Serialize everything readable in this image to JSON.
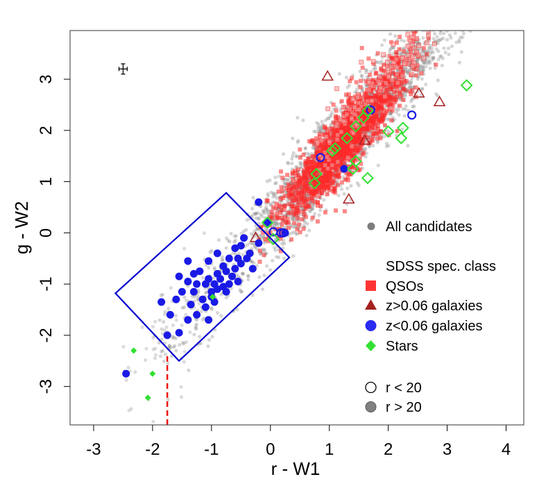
{
  "chart_data": {
    "type": "scatter",
    "title": "",
    "xlabel": "r - W1",
    "ylabel": "g - W2",
    "xlim": [
      -3.4,
      4.3
    ],
    "ylim": [
      -3.75,
      3.95
    ],
    "xticks": [
      "-3",
      "-2",
      "-1",
      "0",
      "1",
      "2",
      "3",
      "4"
    ],
    "yticks": [
      "-3",
      "-2",
      "-1",
      "0",
      "1",
      "2",
      "3"
    ],
    "colors": {
      "all": "#8a8a8a",
      "qso": "#ff2a2a",
      "gal_high": "#a52020",
      "gal_low": "#1a1ae6",
      "star": "#30e030",
      "box": "#0000d0",
      "dashed": "#ee1111"
    },
    "legend": {
      "position": "right",
      "all_candidates": "All candidates",
      "sdss_header": "SDSS spec. class",
      "qsos": "QSOs",
      "gal_high": "z>0.06 galaxies",
      "gal_low": "z<0.06 galaxies",
      "stars": "Stars",
      "bright": "r < 20",
      "faint": "r > 20"
    },
    "error_bar": {
      "x": -2.5,
      "y": 3.2,
      "dx": 0.07,
      "dy": 0.1
    },
    "selection_box": [
      [
        -0.75,
        0.78
      ],
      [
        0.32,
        -0.48
      ],
      [
        -1.55,
        -2.5
      ],
      [
        -2.63,
        -1.18
      ]
    ],
    "cut_line": {
      "x": -1.75,
      "y": [
        -3.75,
        -2.38
      ]
    },
    "all_candidates": {
      "description": "dense cloud along g-W2 = 1.3*(r-W1) + 0.15",
      "trend_slope": 1.3,
      "trend_intercept": 0.15,
      "x_range": [
        -1.9,
        4.0
      ]
    },
    "qsos": {
      "description": "dense red band centered near (1.2, 1.5)",
      "center": [
        1.2,
        1.5
      ],
      "x_range": [
        0.0,
        3.0
      ]
    },
    "series": [
      {
        "name": "z>0.06 galaxies",
        "marker": "triangle",
        "points": [
          [
            0.97,
            3.05
          ],
          [
            2.52,
            2.72
          ],
          [
            2.87,
            2.55
          ],
          [
            1.33,
            0.65
          ],
          [
            -0.25,
            -0.1
          ],
          [
            1.6,
            1.8
          ]
        ]
      },
      {
        "name": "z<0.06 galaxies, r < 20",
        "marker": "circle-open",
        "points": [
          [
            0.85,
            1.47
          ],
          [
            1.7,
            2.4
          ],
          [
            2.4,
            2.3
          ],
          [
            0.18,
            0.0
          ],
          [
            0.05,
            0.02
          ],
          [
            0.22,
            0.0
          ]
        ]
      },
      {
        "name": "z<0.06 galaxies, r > 20",
        "marker": "circle",
        "points": [
          [
            -0.2,
            0.6
          ],
          [
            -0.05,
            0.2
          ],
          [
            0.25,
            0.0
          ],
          [
            1.25,
            1.25
          ],
          [
            -0.45,
            -0.1
          ],
          [
            -0.2,
            -0.2
          ],
          [
            -0.5,
            -0.25
          ],
          [
            -0.35,
            -0.4
          ],
          [
            -0.55,
            -0.5
          ],
          [
            -0.7,
            -0.5
          ],
          [
            -0.4,
            -0.5
          ],
          [
            -0.5,
            -0.6
          ],
          [
            -0.6,
            -0.7
          ],
          [
            -0.8,
            -0.65
          ],
          [
            -0.75,
            -0.75
          ],
          [
            -0.65,
            -0.85
          ],
          [
            -0.9,
            -0.8
          ],
          [
            -0.85,
            -0.9
          ],
          [
            -0.55,
            -0.95
          ],
          [
            -0.95,
            -1.0
          ],
          [
            -0.7,
            -1.0
          ],
          [
            -1.05,
            -0.9
          ],
          [
            -0.8,
            -1.05
          ],
          [
            -0.9,
            -1.1
          ],
          [
            -1.1,
            -1.0
          ],
          [
            -0.75,
            -1.15
          ],
          [
            -1.0,
            -1.15
          ],
          [
            -1.25,
            -1.0
          ],
          [
            -1.4,
            -0.95
          ],
          [
            -1.0,
            -1.25
          ],
          [
            -1.15,
            -1.3
          ],
          [
            -1.3,
            -1.15
          ],
          [
            -0.95,
            -1.35
          ],
          [
            -1.5,
            -1.15
          ],
          [
            -1.1,
            -1.45
          ],
          [
            -1.35,
            -1.4
          ],
          [
            -1.6,
            -1.3
          ],
          [
            -1.25,
            -1.6
          ],
          [
            -1.05,
            -1.7
          ],
          [
            -1.4,
            -1.7
          ],
          [
            -1.7,
            -1.6
          ],
          [
            -1.55,
            -1.95
          ],
          [
            -1.75,
            -2.0
          ],
          [
            -1.85,
            -1.35
          ],
          [
            -1.55,
            -0.85
          ],
          [
            -1.2,
            -0.75
          ],
          [
            -1.05,
            -0.55
          ],
          [
            -0.9,
            -0.4
          ],
          [
            -1.4,
            -0.55
          ],
          [
            -0.6,
            -0.3
          ],
          [
            -0.3,
            -0.7
          ],
          [
            -1.3,
            -0.8
          ],
          [
            -2.45,
            -2.75
          ]
        ]
      },
      {
        "name": "Stars, r < 20",
        "marker": "diamond-open",
        "points": [
          [
            3.33,
            2.88
          ],
          [
            2.25,
            2.05
          ],
          [
            2.22,
            1.85
          ],
          [
            2.0,
            1.98
          ],
          [
            1.65,
            2.38
          ],
          [
            1.58,
            2.25
          ],
          [
            1.45,
            2.08
          ],
          [
            1.3,
            1.85
          ],
          [
            1.1,
            1.65
          ],
          [
            1.05,
            1.6
          ],
          [
            0.78,
            1.15
          ],
          [
            0.75,
            0.97
          ],
          [
            1.45,
            1.4
          ],
          [
            1.4,
            1.25
          ],
          [
            1.65,
            1.07
          ],
          [
            0.05,
            -0.12
          ],
          [
            -0.05,
            0.2
          ]
        ]
      },
      {
        "name": "Stars, r > 20",
        "marker": "diamond",
        "points": [
          [
            -0.98,
            -1.25
          ],
          [
            -2.32,
            -2.3
          ],
          [
            -2.0,
            -2.75
          ],
          [
            -2.08,
            -3.22
          ]
        ]
      }
    ]
  }
}
